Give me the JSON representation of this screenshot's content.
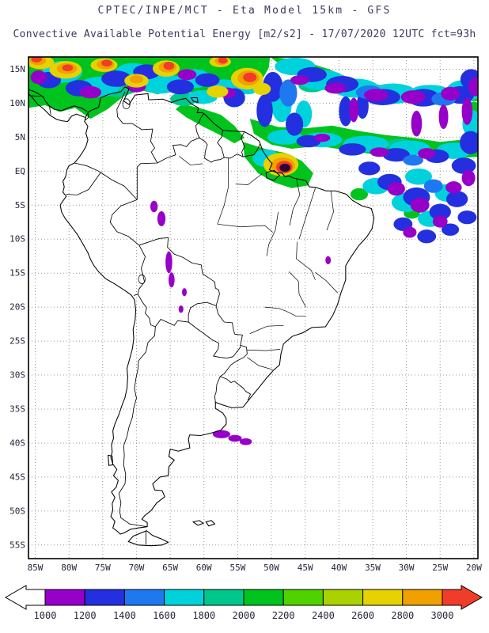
{
  "figure": {
    "title_line1": "CPTEC/INPE/MCT - Eta Model 15km - GFS",
    "title_line2": "Convective Available Potential Energy [m2/s2] - 17/07/2020 12UTC fct=93h"
  },
  "map": {
    "lat_ticks": [
      {
        "label": "15N",
        "value": 15
      },
      {
        "label": "10N",
        "value": 10
      },
      {
        "label": "5N",
        "value": 5
      },
      {
        "label": "EQ",
        "value": 0
      },
      {
        "label": "5S",
        "value": -5
      },
      {
        "label": "10S",
        "value": -10
      },
      {
        "label": "15S",
        "value": -15
      },
      {
        "label": "20S",
        "value": -20
      },
      {
        "label": "25S",
        "value": -25
      },
      {
        "label": "30S",
        "value": -30
      },
      {
        "label": "35S",
        "value": -35
      },
      {
        "label": "40S",
        "value": -40
      },
      {
        "label": "45S",
        "value": -45
      },
      {
        "label": "50S",
        "value": -50
      },
      {
        "label": "55S",
        "value": -55
      }
    ],
    "lon_ticks": [
      {
        "label": "85W",
        "value": -85
      },
      {
        "label": "80W",
        "value": -80
      },
      {
        "label": "75W",
        "value": -75
      },
      {
        "label": "70W",
        "value": -70
      },
      {
        "label": "65W",
        "value": -65
      },
      {
        "label": "60W",
        "value": -60
      },
      {
        "label": "55W",
        "value": -55
      },
      {
        "label": "50W",
        "value": -50
      },
      {
        "label": "45W",
        "value": -45
      },
      {
        "label": "40W",
        "value": -40
      },
      {
        "label": "35W",
        "value": -35
      },
      {
        "label": "30W",
        "value": -30
      },
      {
        "label": "25W",
        "value": -25
      },
      {
        "label": "20W",
        "value": -20
      }
    ]
  },
  "colorbar": {
    "labels": [
      "1000",
      "1200",
      "1400",
      "1600",
      "1800",
      "2000",
      "2200",
      "2400",
      "2600",
      "2800",
      "3000"
    ],
    "segment_colors": [
      "#9600c8",
      "#2430e0",
      "#1e78f0",
      "#00d2dc",
      "#00c88c",
      "#00c31e",
      "#50d200",
      "#aad200",
      "#e6d200",
      "#f0a000"
    ],
    "under_arrow_color": "#ffffff",
    "over_arrow_color": "#f03c28"
  }
}
